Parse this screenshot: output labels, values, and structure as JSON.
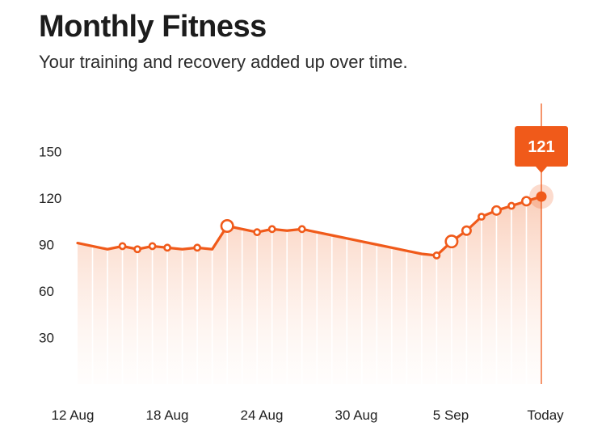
{
  "header": {
    "title": "Monthly Fitness",
    "subtitle": "Your training and recovery added up over time."
  },
  "colors": {
    "accent": "#f05a1a",
    "fill_top": "#fbd9c8",
    "stripe": "#ffffff",
    "badge": "#f05a1a"
  },
  "chart_data": {
    "type": "area",
    "title": "Monthly Fitness",
    "xlabel": "",
    "ylabel": "",
    "x_tick_labels": [
      "12 Aug",
      "18 Aug",
      "24 Aug",
      "30 Aug",
      "5 Sep",
      "Today"
    ],
    "y_ticks": [
      30,
      60,
      90,
      120,
      150
    ],
    "ylim": [
      0,
      180
    ],
    "grid": false,
    "highlight": {
      "label": "121",
      "value": 121,
      "x": "Today"
    },
    "series": [
      {
        "x": [
          0,
          1,
          2,
          3,
          4,
          5,
          6,
          7,
          8,
          9,
          10,
          11,
          12,
          13,
          14,
          15,
          16,
          17,
          18,
          19,
          20,
          21,
          22,
          23,
          24,
          25,
          26,
          27,
          28,
          29,
          30,
          31
        ],
        "values": [
          91,
          89,
          87,
          89,
          87,
          89,
          88,
          87,
          88,
          87,
          102,
          100,
          98,
          100,
          99,
          100,
          98,
          96,
          94,
          92,
          90,
          88,
          86,
          84,
          83,
          92,
          99,
          108,
          112,
          115,
          118,
          121
        ],
        "markers": [
          {
            "i": 3,
            "size": "small"
          },
          {
            "i": 4,
            "size": "small"
          },
          {
            "i": 5,
            "size": "small"
          },
          {
            "i": 6,
            "size": "small"
          },
          {
            "i": 8,
            "size": "small"
          },
          {
            "i": 10,
            "size": "large"
          },
          {
            "i": 12,
            "size": "small"
          },
          {
            "i": 13,
            "size": "small"
          },
          {
            "i": 15,
            "size": "small"
          },
          {
            "i": 24,
            "size": "small"
          },
          {
            "i": 25,
            "size": "large"
          },
          {
            "i": 26,
            "size": "medium"
          },
          {
            "i": 27,
            "size": "small"
          },
          {
            "i": 28,
            "size": "medium"
          },
          {
            "i": 29,
            "size": "small"
          },
          {
            "i": 30,
            "size": "medium"
          }
        ]
      }
    ]
  }
}
